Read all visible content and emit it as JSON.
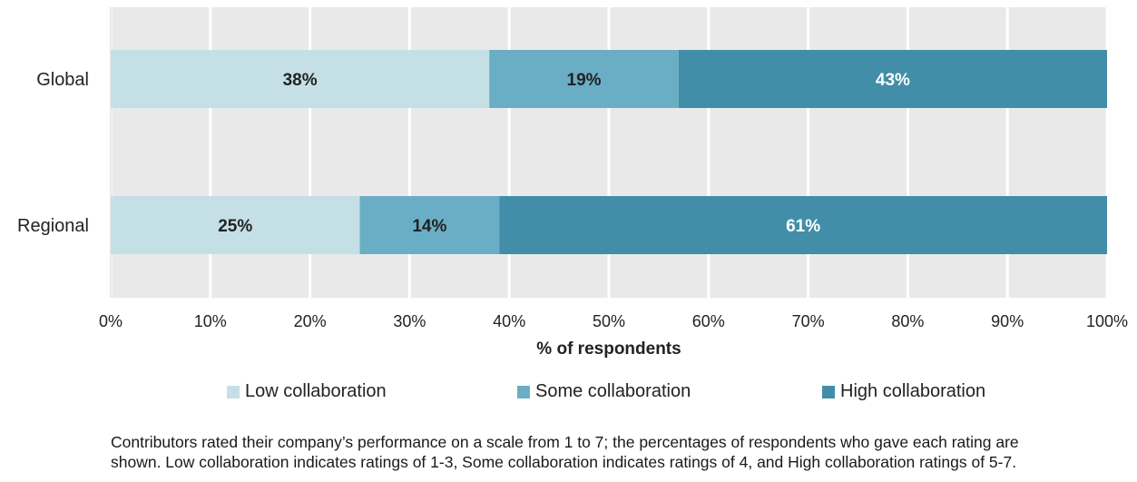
{
  "chart_data": {
    "type": "bar",
    "orientation": "horizontal",
    "stacked": true,
    "categories": [
      "Global",
      "Regional"
    ],
    "series": [
      {
        "name": "Low collaboration",
        "values": [
          38,
          25
        ],
        "labels": [
          "38%",
          "25%"
        ],
        "color": "#c5dfe7"
      },
      {
        "name": "Some collaboration",
        "values": [
          19,
          14
        ],
        "labels": [
          "19%",
          "14%"
        ],
        "color": "#6aaec5"
      },
      {
        "name": "High collaboration",
        "values": [
          43,
          61
        ],
        "labels": [
          "43%",
          "61%"
        ],
        "color": "#428ea8"
      }
    ],
    "xlabel": "% of respondents",
    "xlim": [
      0,
      100
    ],
    "xticks": [
      "0%",
      "10%",
      "20%",
      "30%",
      "40%",
      "50%",
      "60%",
      "70%",
      "80%",
      "90%",
      "100%"
    ],
    "grid": true,
    "legend_position": "bottom",
    "plot_background": "#e9e9e9"
  },
  "footnote": {
    "line1": "Contributors rated their company’s performance on a scale from 1 to 7; the percentages of respondents who gave each rating are",
    "line2": "shown. Low collaboration indicates ratings of 1-3, Some collaboration indicates ratings of 4, and High collaboration ratings of 5-7."
  }
}
